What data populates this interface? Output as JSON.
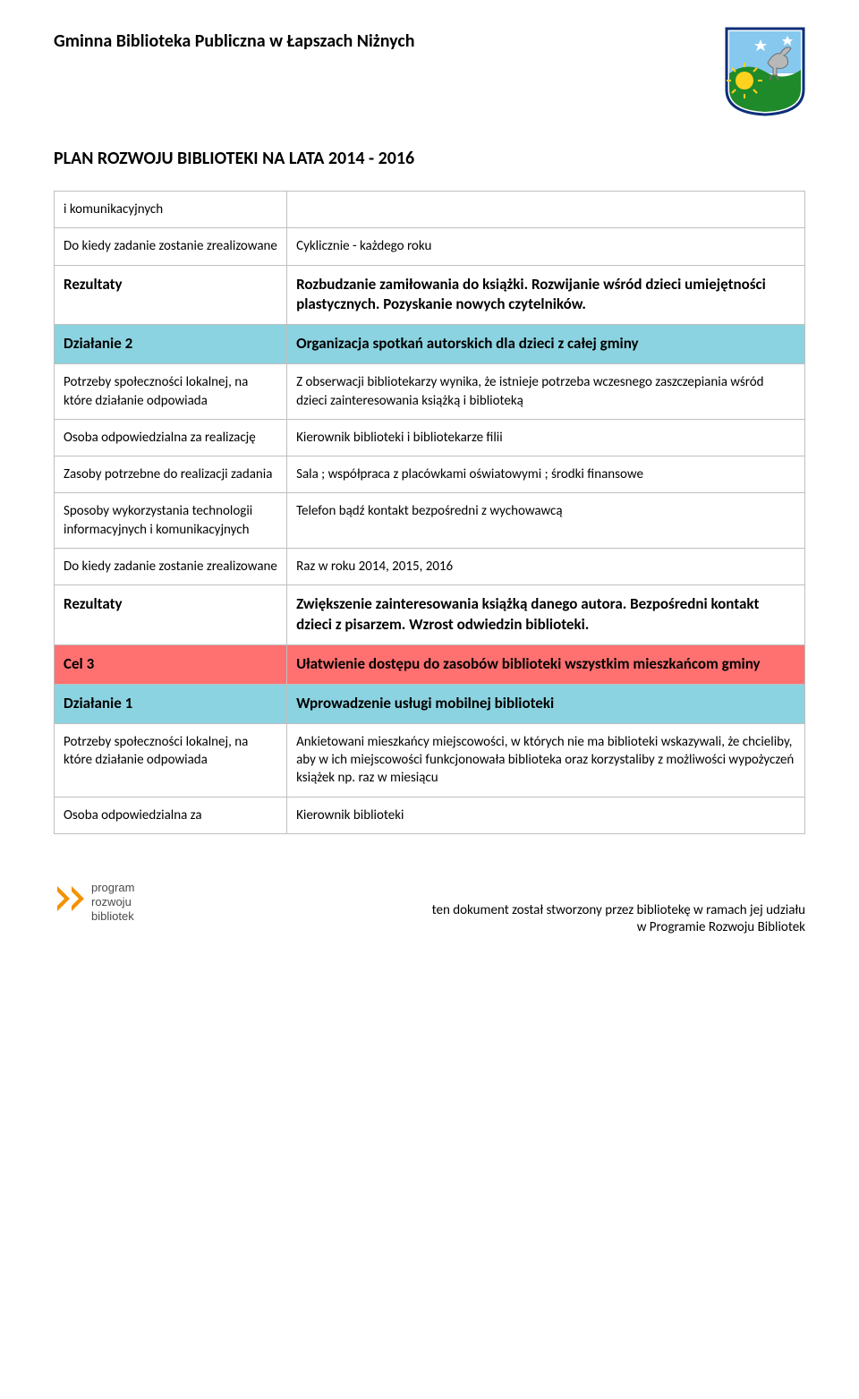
{
  "header": {
    "org_name": "Gminna Biblioteka Publiczna w Łapszach Niżnych",
    "doc_title": "PLAN ROZWOJU BIBLIOTEKI NA LATA 2014 - 2016"
  },
  "rows": [
    {
      "type": "plain",
      "label": "i komunikacyjnych",
      "value": ""
    },
    {
      "type": "plain",
      "label": "Do kiedy zadanie zostanie zrealizowane",
      "value": "Cyklicznie - każdego roku"
    },
    {
      "type": "rez",
      "label": "Rezultaty",
      "value": "Rozbudzanie zamiłowania  do książki. Rozwijanie wśród dzieci umiejętności plastycznych. Pozyskanie nowych czytelników."
    },
    {
      "type": "act",
      "label": "Działanie 2",
      "value": "Organizacja spotkań autorskich dla dzieci z całej gminy"
    },
    {
      "type": "plain",
      "label": "Potrzeby społeczności lokalnej, na które działanie odpowiada",
      "value": "Z obserwacji bibliotekarzy wynika, że istnieje potrzeba wczesnego zaszczepiania wśród dzieci zainteresowania książką i biblioteką"
    },
    {
      "type": "plain",
      "label": "Osoba odpowiedzialna  za realizację",
      "value": "Kierownik biblioteki i bibliotekarze filii"
    },
    {
      "type": "plain",
      "label": "Zasoby potrzebne do realizacji zadania",
      "value": "Sala ; współpraca z placówkami oświatowymi ; środki finansowe"
    },
    {
      "type": "plain",
      "label": "Sposoby wykorzystania technologii informacyjnych i komunikacyjnych",
      "value": "Telefon bądź kontakt bezpośredni z wychowawcą"
    },
    {
      "type": "plain",
      "label": "Do kiedy zadanie zostanie zrealizowane",
      "value": "Raz w roku 2014, 2015, 2016"
    },
    {
      "type": "rez",
      "label": "Rezultaty",
      "value": "Zwiększenie zainteresowania książką danego autora. Bezpośredni kontakt dzieci z pisarzem. Wzrost odwiedzin biblioteki."
    },
    {
      "type": "cel",
      "label": "Cel 3",
      "value": "Ułatwienie dostępu do zasobów biblioteki wszystkim mieszkańcom gminy"
    },
    {
      "type": "act",
      "label": "Działanie 1",
      "value": "Wprowadzenie usługi mobilnej biblioteki"
    },
    {
      "type": "plain",
      "label": "Potrzeby społeczności lokalnej, na które działanie odpowiada",
      "value": "Ankietowani mieszkańcy miejscowości, w których nie ma biblioteki wskazywali, że chcieliby, aby w ich miejscowości funkcjonowała biblioteka oraz korzystaliby z możliwości wypożyczeń książek np. raz w miesiącu"
    },
    {
      "type": "plain",
      "label": "Osoba odpowiedzialna  za",
      "value": "Kierownik biblioteki"
    }
  ],
  "footer": {
    "line1": "ten dokument został stworzony przez bibliotekę w ramach jej udziału",
    "line2": "w Programie Rozwoju Bibliotek",
    "logo_text1": "program",
    "logo_text2": "rozwoju",
    "logo_text3": "bibliotek"
  },
  "colors": {
    "cel_bg": "#ff7171",
    "act_bg": "#8bd3e0",
    "border": "#bfbfbf",
    "crest_border": "#0b2e7a",
    "crest_bg": "#ffffff",
    "crest_sky": "#87c8ef",
    "crest_hill": "#1f8a2a",
    "crest_sun": "#ffd21f",
    "crest_goat": "#b8b8b8",
    "logo_chevron": "#f39200",
    "logo_text": "#4a4a4a"
  }
}
